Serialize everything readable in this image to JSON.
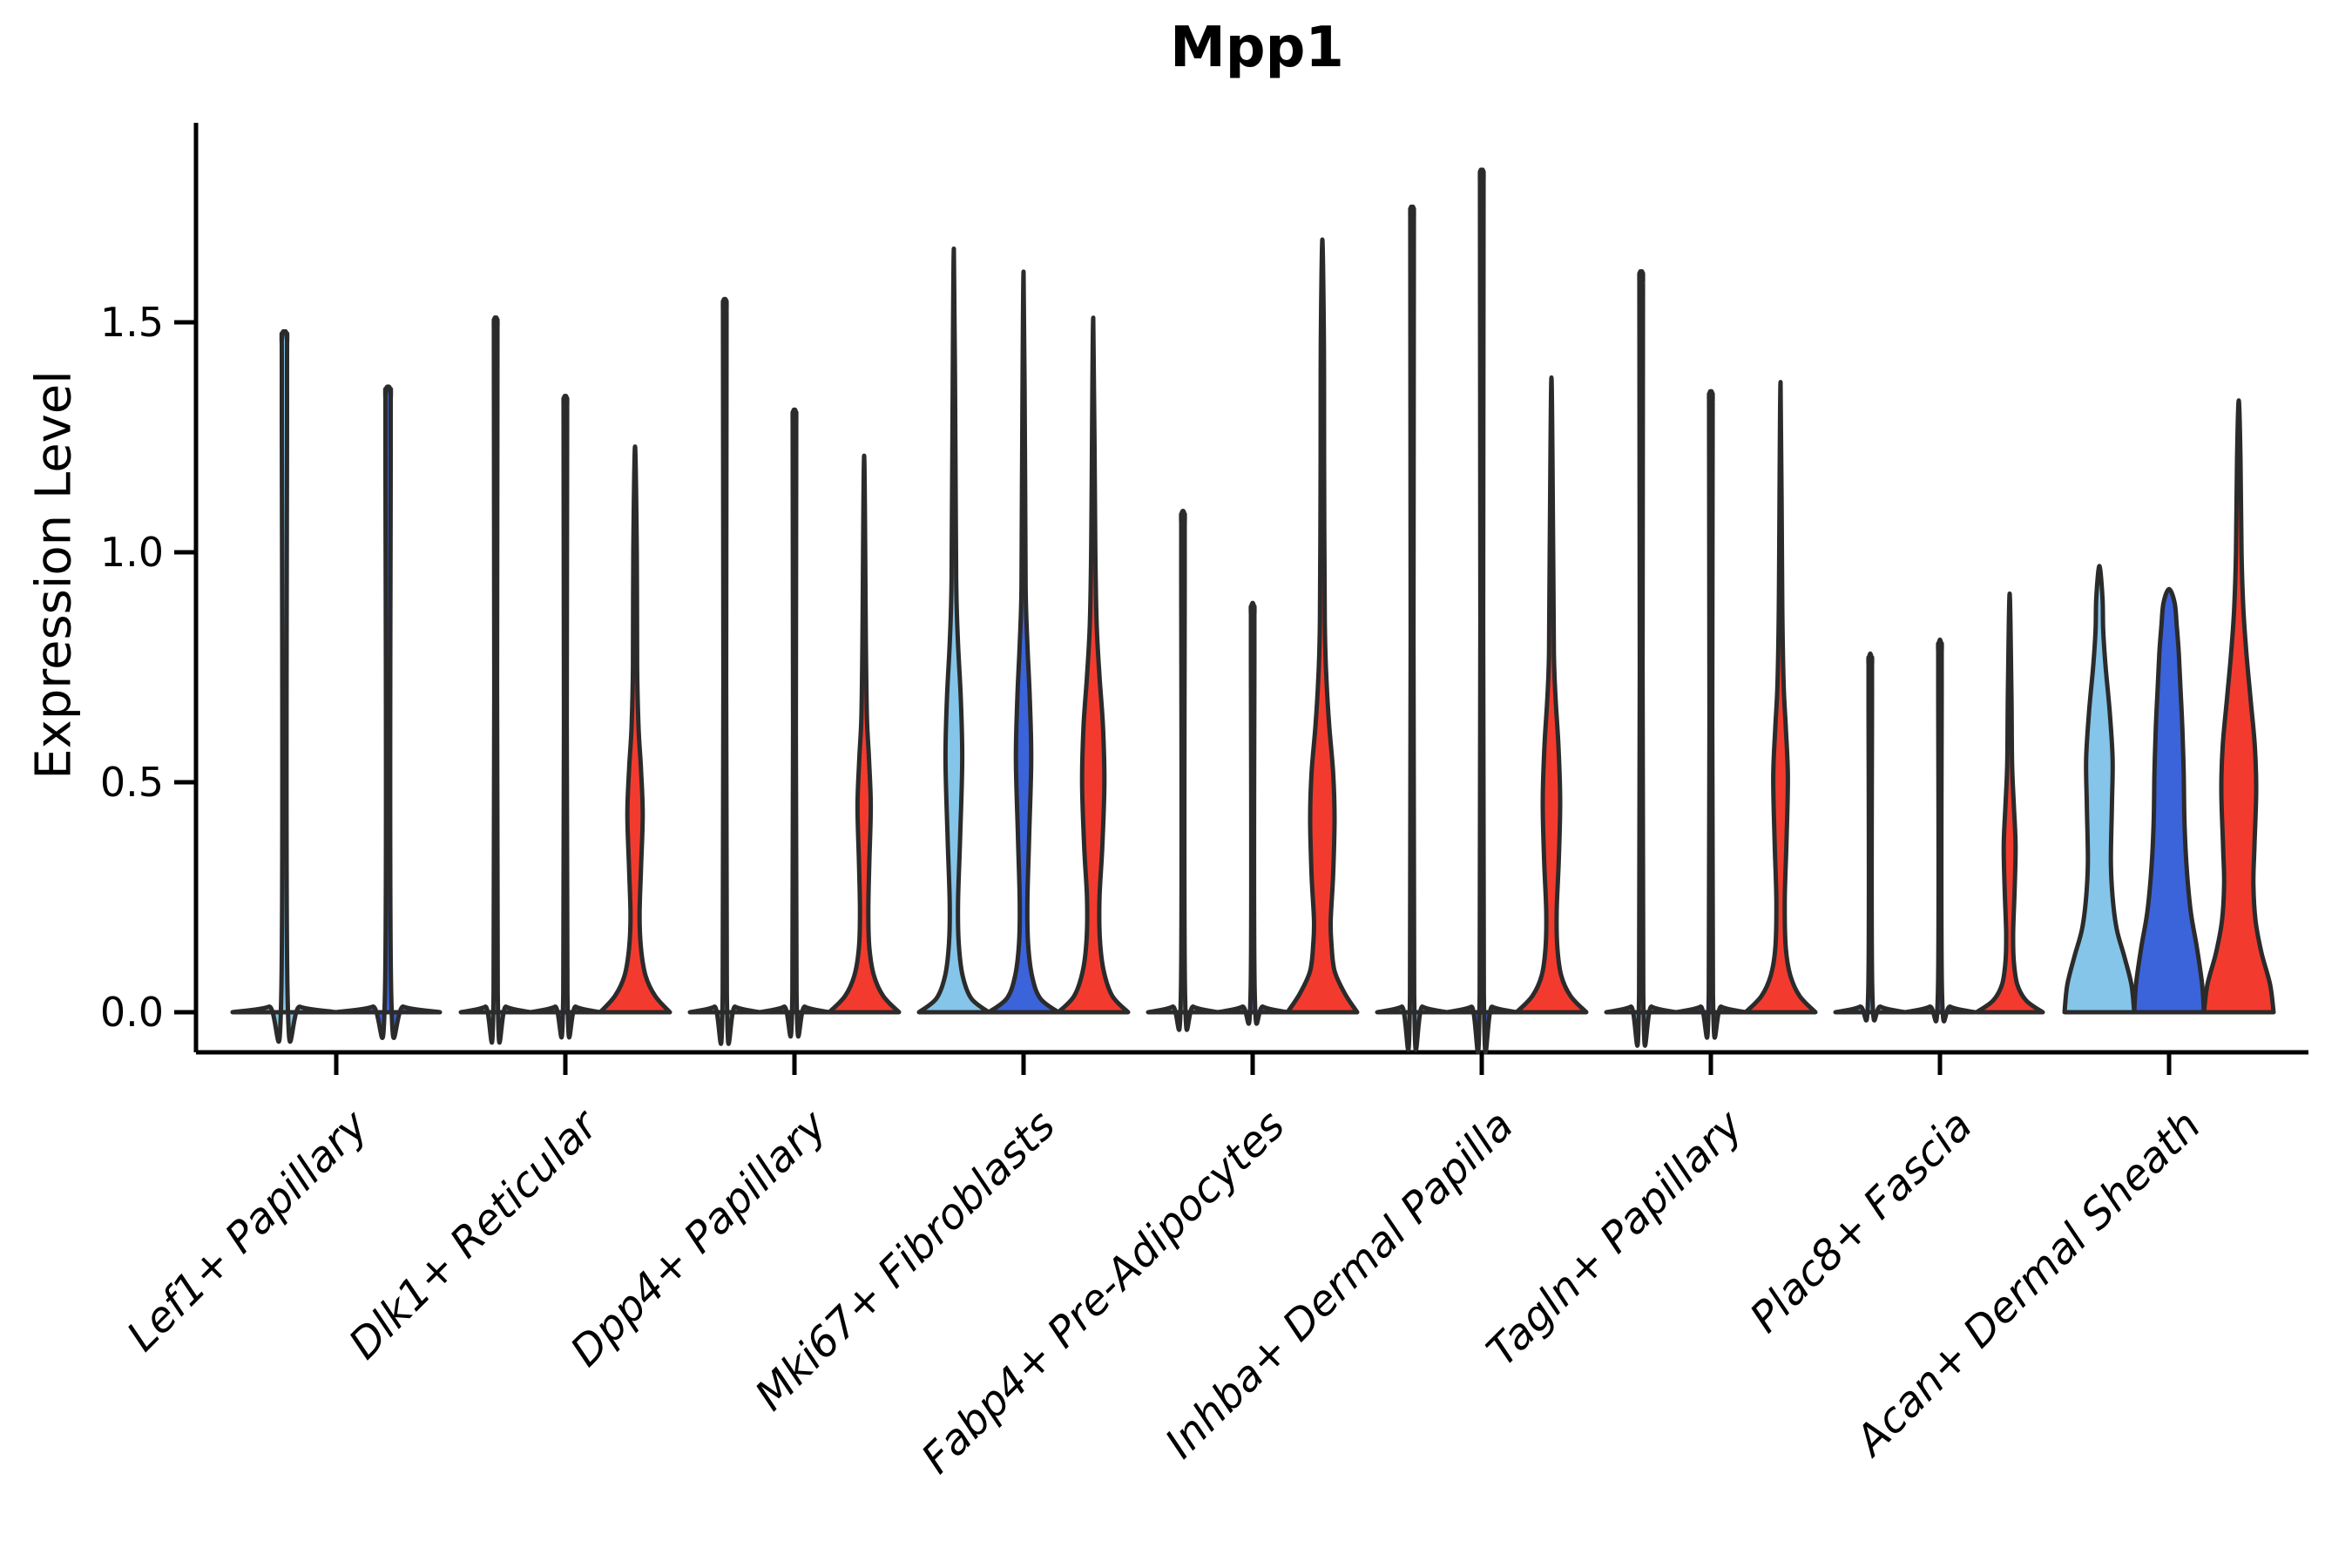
{
  "chart_data": {
    "type": "violin",
    "title": "Mpp1",
    "ylabel": "Expression Level",
    "xlabel": "",
    "grid": false,
    "legend": false,
    "ytick_labels": [
      "0.0",
      "0.5",
      "1.0",
      "1.5"
    ],
    "yticks": [
      0.0,
      0.5,
      1.0,
      1.5
    ],
    "ylim": [
      -0.09,
      1.92
    ],
    "outline_color": "#2b2b2b",
    "axis_color": "#000000",
    "series": [
      {
        "key": "light-blue-violin",
        "color": "#85C5E9"
      },
      {
        "key": "blue-violin",
        "color": "#3B63DA"
      },
      {
        "key": "red-violin",
        "color": "#F23B2E"
      }
    ],
    "categories": [
      "Lef1+ Papillary",
      "Dlk1+ Reticular",
      "Dpp4+ Papillary",
      "Mki67+ Fibroblasts",
      "Fabp4+ Pre-Adipocytes",
      "Inhba+ Dermal Papilla",
      "Tagln+ Papillary",
      "Plac8+ Fascia",
      "Acan+ Dermal Sheath"
    ],
    "groups": [
      {
        "category": "Lef1+ Papillary",
        "violins": [
          {
            "series": 0,
            "max": 1.48,
            "profile": "spike"
          },
          {
            "series": 1,
            "max": 1.36,
            "profile": "spike"
          }
        ]
      },
      {
        "category": "Dlk1+ Reticular",
        "violins": [
          {
            "series": 0,
            "max": 1.51,
            "profile": "spike"
          },
          {
            "series": 1,
            "max": 1.34,
            "profile": "spike"
          },
          {
            "series": 2,
            "max": 1.23,
            "profile": [
              [
                0,
                1
              ],
              [
                0.035,
                0.58
              ],
              [
                0.08,
                0.3
              ],
              [
                0.14,
                0.17
              ],
              [
                0.21,
                0.13
              ],
              [
                0.31,
                0.17
              ],
              [
                0.43,
                0.22
              ],
              [
                0.53,
                0.17
              ],
              [
                0.62,
                0.1
              ],
              [
                0.75,
                0.06
              ],
              [
                1.0,
                0.05
              ],
              [
                1.23,
                0
              ]
            ]
          }
        ]
      },
      {
        "category": "Dpp4+ Papillary",
        "violins": [
          {
            "series": 0,
            "max": 1.55,
            "profile": "spike"
          },
          {
            "series": 1,
            "max": 1.31,
            "profile": "spike"
          },
          {
            "series": 2,
            "max": 1.21,
            "profile": [
              [
                0,
                1
              ],
              [
                0.035,
                0.55
              ],
              [
                0.08,
                0.28
              ],
              [
                0.14,
                0.15
              ],
              [
                0.22,
                0.12
              ],
              [
                0.33,
                0.15
              ],
              [
                0.45,
                0.19
              ],
              [
                0.55,
                0.14
              ],
              [
                0.64,
                0.08
              ],
              [
                0.8,
                0.05
              ],
              [
                1.21,
                0
              ]
            ]
          }
        ]
      },
      {
        "category": "Mki67+ Fibroblasts",
        "violins": [
          {
            "series": 0,
            "max": 1.66,
            "profile": [
              [
                0,
                1
              ],
              [
                0.03,
                0.5
              ],
              [
                0.08,
                0.25
              ],
              [
                0.15,
                0.14
              ],
              [
                0.24,
                0.12
              ],
              [
                0.38,
                0.18
              ],
              [
                0.55,
                0.24
              ],
              [
                0.68,
                0.2
              ],
              [
                0.8,
                0.12
              ],
              [
                0.92,
                0.07
              ],
              [
                1.15,
                0.05
              ],
              [
                1.66,
                0
              ]
            ]
          },
          {
            "series": 1,
            "max": 1.61,
            "profile": [
              [
                0,
                1
              ],
              [
                0.03,
                0.48
              ],
              [
                0.08,
                0.24
              ],
              [
                0.15,
                0.13
              ],
              [
                0.24,
                0.11
              ],
              [
                0.38,
                0.16
              ],
              [
                0.55,
                0.22
              ],
              [
                0.68,
                0.18
              ],
              [
                0.8,
                0.11
              ],
              [
                0.92,
                0.06
              ],
              [
                1.15,
                0.045
              ],
              [
                1.61,
                0
              ]
            ]
          },
          {
            "series": 2,
            "max": 1.51,
            "profile": [
              [
                0,
                1
              ],
              [
                0.035,
                0.55
              ],
              [
                0.09,
                0.3
              ],
              [
                0.16,
                0.19
              ],
              [
                0.25,
                0.18
              ],
              [
                0.36,
                0.26
              ],
              [
                0.5,
                0.32
              ],
              [
                0.62,
                0.28
              ],
              [
                0.73,
                0.18
              ],
              [
                0.84,
                0.1
              ],
              [
                1.0,
                0.06
              ],
              [
                1.51,
                0
              ]
            ]
          }
        ]
      },
      {
        "category": "Fabp4+ Pre-Adipocytes",
        "violins": [
          {
            "series": 0,
            "max": 1.09,
            "profile": "spike"
          },
          {
            "series": 1,
            "max": 0.89,
            "profile": "spike"
          },
          {
            "series": 2,
            "max": 1.68,
            "profile": [
              [
                0,
                1
              ],
              [
                0.04,
                0.65
              ],
              [
                0.09,
                0.35
              ],
              [
                0.15,
                0.26
              ],
              [
                0.2,
                0.24
              ],
              [
                0.3,
                0.31
              ],
              [
                0.42,
                0.35
              ],
              [
                0.52,
                0.31
              ],
              [
                0.62,
                0.2
              ],
              [
                0.72,
                0.12
              ],
              [
                0.85,
                0.07
              ],
              [
                1.2,
                0.05
              ],
              [
                1.45,
                0.045
              ],
              [
                1.68,
                0
              ]
            ]
          }
        ]
      },
      {
        "category": "Inhba+ Dermal Papilla",
        "violins": [
          {
            "series": 0,
            "max": 1.75,
            "profile": "spike"
          },
          {
            "series": 1,
            "max": 1.83,
            "profile": "spike"
          },
          {
            "series": 2,
            "max": 1.38,
            "profile": [
              [
                0,
                1
              ],
              [
                0.035,
                0.55
              ],
              [
                0.08,
                0.28
              ],
              [
                0.14,
                0.17
              ],
              [
                0.22,
                0.15
              ],
              [
                0.33,
                0.21
              ],
              [
                0.46,
                0.25
              ],
              [
                0.58,
                0.2
              ],
              [
                0.68,
                0.12
              ],
              [
                0.78,
                0.07
              ],
              [
                1.0,
                0.05
              ],
              [
                1.38,
                0
              ]
            ]
          }
        ]
      },
      {
        "category": "Tagln+ Papillary",
        "violins": [
          {
            "series": 0,
            "max": 1.61,
            "profile": "spike"
          },
          {
            "series": 1,
            "max": 1.35,
            "profile": "spike"
          },
          {
            "series": 2,
            "max": 1.37,
            "profile": [
              [
                0,
                1
              ],
              [
                0.035,
                0.55
              ],
              [
                0.08,
                0.28
              ],
              [
                0.14,
                0.15
              ],
              [
                0.24,
                0.12
              ],
              [
                0.37,
                0.17
              ],
              [
                0.51,
                0.21
              ],
              [
                0.62,
                0.15
              ],
              [
                0.71,
                0.09
              ],
              [
                0.88,
                0.05
              ],
              [
                1.37,
                0
              ]
            ]
          }
        ]
      },
      {
        "category": "Plac8+ Fascia",
        "violins": [
          {
            "series": 0,
            "max": 0.78,
            "profile": "spike"
          },
          {
            "series": 1,
            "max": 0.81,
            "profile": "spike"
          },
          {
            "series": 2,
            "max": 0.91,
            "profile": [
              [
                0,
                0.95
              ],
              [
                0.025,
                0.48
              ],
              [
                0.06,
                0.22
              ],
              [
                0.11,
                0.12
              ],
              [
                0.17,
                0.1
              ],
              [
                0.26,
                0.14
              ],
              [
                0.36,
                0.17
              ],
              [
                0.45,
                0.12
              ],
              [
                0.54,
                0.07
              ],
              [
                0.7,
                0.05
              ],
              [
                0.91,
                0
              ]
            ]
          }
        ]
      },
      {
        "category": "Acan+ Dermal Sheath",
        "violins": [
          {
            "series": 0,
            "max": 0.97,
            "profile": [
              [
                0,
                1
              ],
              [
                0.06,
                0.92
              ],
              [
                0.12,
                0.72
              ],
              [
                0.18,
                0.5
              ],
              [
                0.25,
                0.38
              ],
              [
                0.33,
                0.33
              ],
              [
                0.45,
                0.36
              ],
              [
                0.55,
                0.38
              ],
              [
                0.65,
                0.3
              ],
              [
                0.75,
                0.18
              ],
              [
                0.83,
                0.11
              ],
              [
                0.9,
                0.09
              ],
              [
                0.97,
                0
              ]
            ]
          },
          {
            "series": 1,
            "max": 0.92,
            "profile": [
              [
                0,
                1
              ],
              [
                0.06,
                0.95
              ],
              [
                0.14,
                0.8
              ],
              [
                0.22,
                0.62
              ],
              [
                0.32,
                0.5
              ],
              [
                0.42,
                0.44
              ],
              [
                0.52,
                0.42
              ],
              [
                0.62,
                0.38
              ],
              [
                0.7,
                0.33
              ],
              [
                0.78,
                0.28
              ],
              [
                0.84,
                0.22
              ],
              [
                0.89,
                0.16
              ],
              [
                0.92,
                0
              ]
            ]
          },
          {
            "series": 2,
            "max": 1.33,
            "profile": [
              [
                0,
                1
              ],
              [
                0.06,
                0.9
              ],
              [
                0.13,
                0.65
              ],
              [
                0.2,
                0.48
              ],
              [
                0.28,
                0.42
              ],
              [
                0.36,
                0.45
              ],
              [
                0.48,
                0.5
              ],
              [
                0.58,
                0.46
              ],
              [
                0.68,
                0.34
              ],
              [
                0.78,
                0.22
              ],
              [
                0.88,
                0.13
              ],
              [
                1.0,
                0.08
              ],
              [
                1.2,
                0.05
              ],
              [
                1.33,
                0
              ]
            ]
          }
        ]
      }
    ]
  }
}
